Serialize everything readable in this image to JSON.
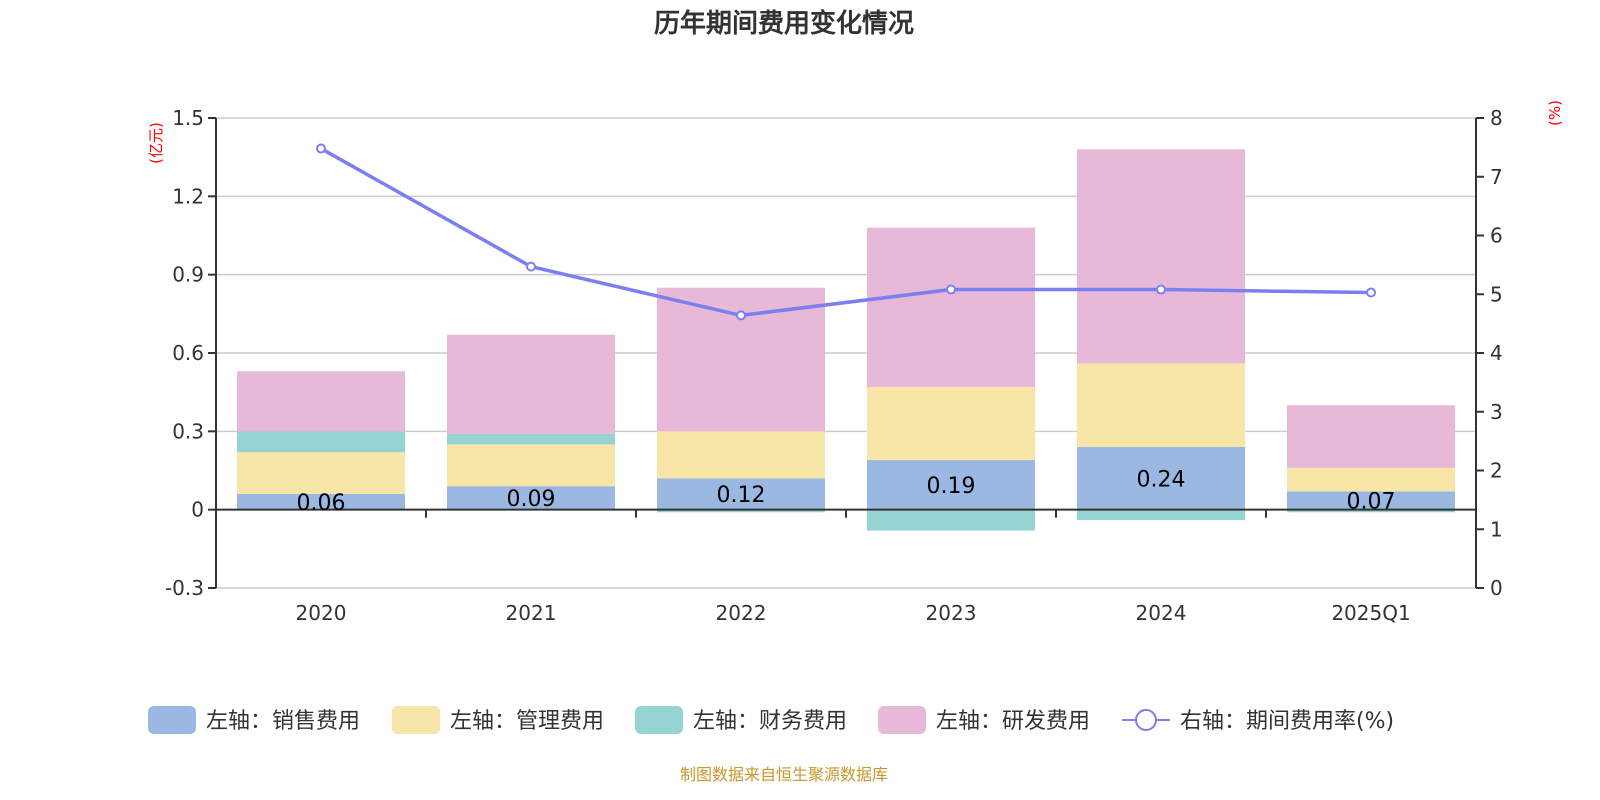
{
  "chart_data": {
    "type": "bar",
    "stacked": true,
    "title": "历年期间费用变化情况",
    "categories": [
      "2020",
      "2021",
      "2022",
      "2023",
      "2024",
      "2025Q1"
    ],
    "left_axis": {
      "unit_label": "(亿元)",
      "range": [
        -0.3,
        1.5
      ],
      "ticks": [
        -0.3,
        0,
        0.3,
        0.6,
        0.9,
        1.2,
        1.5
      ],
      "tick_labels": [
        "-0.3",
        "0",
        "0.3",
        "0.6",
        "0.9",
        "1.2",
        "1.5"
      ]
    },
    "right_axis": {
      "unit_label": "(%)",
      "range": [
        0,
        8
      ],
      "ticks": [
        0,
        1,
        2,
        3,
        4,
        5,
        6,
        7,
        8
      ],
      "tick_labels": [
        "0",
        "1",
        "2",
        "3",
        "4",
        "5",
        "6",
        "7",
        "8"
      ]
    },
    "grid": true,
    "legend_position": "bottom",
    "series": [
      {
        "name": "左轴：销售费用",
        "type": "bar",
        "axis": "left",
        "color": "#9bb8e2",
        "values": [
          0.06,
          0.09,
          0.12,
          0.19,
          0.24,
          0.07
        ],
        "data_labels": [
          "0.06",
          "0.09",
          "0.12",
          "0.19",
          "0.24",
          "0.07"
        ]
      },
      {
        "name": "左轴：管理费用",
        "type": "bar",
        "axis": "left",
        "color": "#f8e6a9",
        "values": [
          0.16,
          0.16,
          0.18,
          0.28,
          0.32,
          0.09
        ]
      },
      {
        "name": "左轴：财务费用",
        "type": "bar",
        "axis": "left",
        "color": "#96d3d3",
        "values": [
          0.08,
          0.04,
          -0.01,
          -0.08,
          -0.04,
          -0.01
        ]
      },
      {
        "name": "左轴：研发费用",
        "type": "bar",
        "axis": "left",
        "color": "#e7b8d8",
        "values": [
          0.23,
          0.38,
          0.55,
          0.61,
          0.82,
          0.24
        ]
      },
      {
        "name": "右轴：期间费用率(%)",
        "type": "line",
        "axis": "right",
        "color": "#7b7ff0",
        "values": [
          7.48,
          5.47,
          4.64,
          5.08,
          5.08,
          5.03
        ]
      }
    ],
    "footer": "制图数据来自恒生聚源数据库"
  }
}
